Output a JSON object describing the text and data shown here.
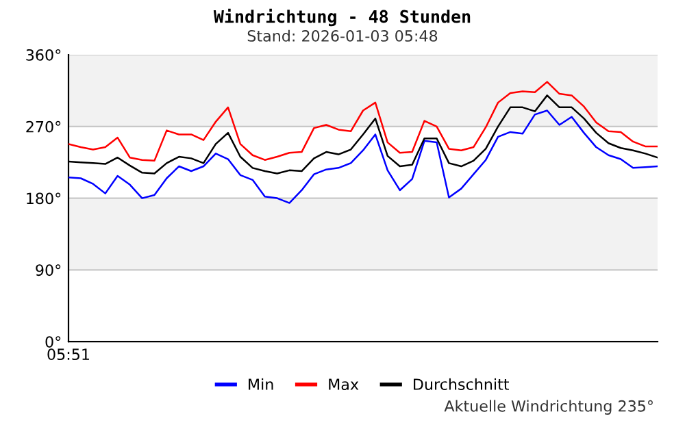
{
  "chart_data": {
    "type": "line",
    "title": "Windrichtung - 48 Stunden",
    "subtitle": "Stand: 2026-01-03 05:48",
    "annotations": [
      "Aktuelle Windrichtung 235°"
    ],
    "categories": [
      "05:51",
      null,
      null,
      null,
      null,
      null,
      null,
      null,
      null,
      null,
      null,
      null,
      null,
      null,
      null,
      null,
      null,
      null,
      null,
      null,
      null,
      null,
      null,
      null,
      null,
      null,
      null,
      null,
      null,
      null,
      null,
      null,
      null,
      null,
      null,
      null,
      null,
      null,
      null,
      null,
      null,
      null,
      null,
      null,
      null,
      null,
      null,
      null,
      null
    ],
    "ylim": [
      0,
      360
    ],
    "yticks": [
      {
        "value": 0,
        "label": "0°"
      },
      {
        "value": 90,
        "label": "90°"
      },
      {
        "value": 180,
        "label": "180°"
      },
      {
        "value": 270,
        "label": "270°"
      },
      {
        "value": 360,
        "label": "360°"
      }
    ],
    "bands": [
      {
        "axis": "y",
        "from": 90,
        "to": 180,
        "color": "#f2f2f2"
      },
      {
        "axis": "y",
        "from": 270,
        "to": 360,
        "color": "#f2f2f2"
      }
    ],
    "grid": "y",
    "legend": "bottom",
    "line_style": "solid",
    "series": [
      {
        "name": "Min",
        "color": "#0000ff",
        "values": [
          206,
          205,
          198,
          186,
          208,
          197,
          180,
          184,
          205,
          220,
          214,
          220,
          236,
          229,
          209,
          203,
          182,
          180,
          174,
          190,
          210,
          216,
          218,
          224,
          240,
          260,
          215,
          190,
          204,
          252,
          250,
          181,
          192,
          210,
          228,
          257,
          263,
          261,
          285,
          290,
          272,
          282,
          262,
          244,
          234,
          229,
          218,
          219,
          220
        ]
      },
      {
        "name": "Max",
        "color": "#ff0000",
        "values": [
          248,
          244,
          241,
          244,
          256,
          231,
          228,
          227,
          265,
          260,
          260,
          253,
          276,
          294,
          248,
          234,
          228,
          232,
          237,
          238,
          268,
          272,
          266,
          264,
          290,
          300,
          250,
          237,
          238,
          277,
          270,
          242,
          240,
          244,
          269,
          300,
          312,
          314,
          313,
          326,
          311,
          309,
          295,
          275,
          264,
          263,
          251,
          245,
          245
        ]
      },
      {
        "name": "Durchschnitt",
        "color": "#000000",
        "values": [
          226,
          225,
          224,
          223,
          231,
          221,
          212,
          211,
          224,
          232,
          230,
          224,
          248,
          262,
          232,
          218,
          214,
          211,
          215,
          214,
          230,
          238,
          235,
          241,
          260,
          280,
          233,
          220,
          222,
          255,
          255,
          224,
          220,
          227,
          242,
          270,
          294,
          294,
          289,
          309,
          294,
          294,
          280,
          262,
          249,
          243,
          240,
          236,
          231
        ]
      }
    ]
  }
}
